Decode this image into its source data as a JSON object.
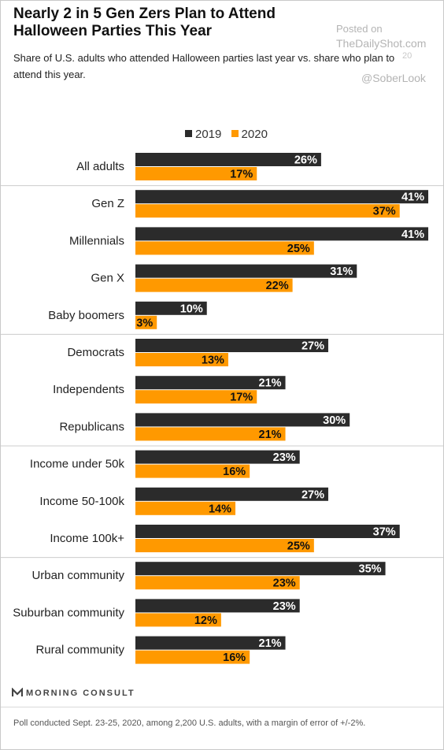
{
  "header": {
    "title": "Nearly 2 in 5 Gen Zers Plan to Attend Halloween Parties This Year",
    "subtitle": "Share of U.S. adults who attended Halloween parties last year vs. share who plan to attend this year."
  },
  "watermark": {
    "posted_on": "Posted on",
    "site": "TheDailyShot.com",
    "handle": "@SoberLook",
    "date_fragment": "20"
  },
  "legend": [
    {
      "label": "2019",
      "color": "#2b2b2b"
    },
    {
      "label": "2020",
      "color": "#ff9900"
    }
  ],
  "chart_data": {
    "type": "bar",
    "orientation": "horizontal",
    "value_format": "percent",
    "categories": [
      "All adults",
      "Gen Z",
      "Millennials",
      "Gen X",
      "Baby boomers",
      "Democrats",
      "Independents",
      "Republicans",
      "Income under 50k",
      "Income 50-100k",
      "Income 100k+",
      "Urban community",
      "Suburban community",
      "Rural community"
    ],
    "series": [
      {
        "name": "2019",
        "color": "#2b2b2b",
        "values": [
          26,
          41,
          41,
          31,
          10,
          27,
          21,
          30,
          23,
          27,
          37,
          35,
          23,
          21
        ]
      },
      {
        "name": "2020",
        "color": "#ff9900",
        "values": [
          17,
          37,
          25,
          22,
          3,
          13,
          17,
          21,
          16,
          14,
          25,
          23,
          12,
          16
        ]
      }
    ],
    "group_separators_after": [
      "All adults",
      "Baby boomers",
      "Republicans",
      "Income 100k+"
    ],
    "xlim": [
      0,
      41
    ],
    "grid": false,
    "legend_position": "top"
  },
  "footer": {
    "logo_text": "MORNING CONSULT",
    "logo_mark": "ℳ",
    "note": "Poll conducted Sept. 23-25, 2020, among 2,200 U.S. adults, with a margin of error of +/-2%."
  }
}
